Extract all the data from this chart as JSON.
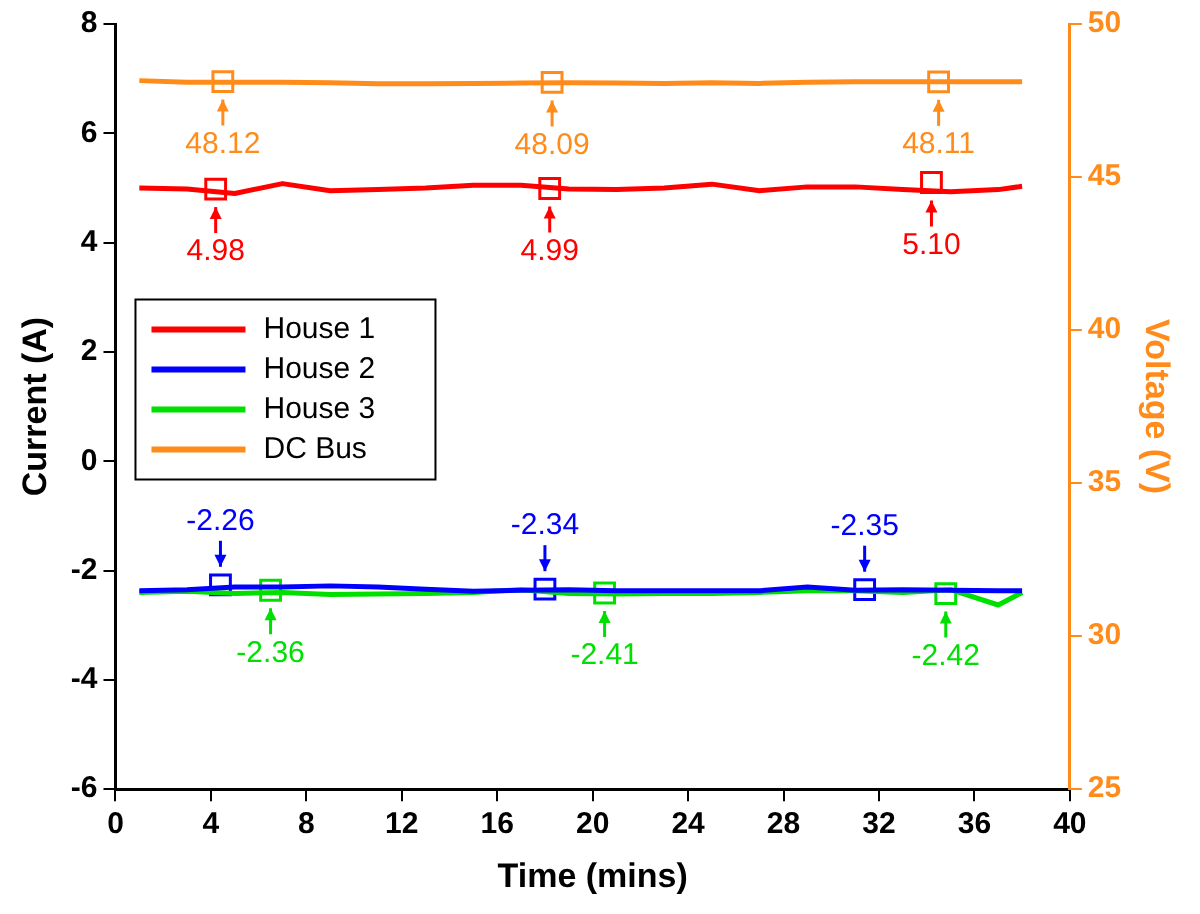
{
  "chart_data": {
    "type": "line",
    "xlabel": "Time (mins)",
    "ylabel": "Current (A)",
    "y2label": "Voltage (V)",
    "xlim": [
      0,
      40
    ],
    "xticks": [
      0,
      4,
      8,
      12,
      16,
      20,
      24,
      28,
      32,
      36,
      40
    ],
    "ylim": [
      -6,
      8
    ],
    "yticks": [
      -6,
      -4,
      -2,
      0,
      2,
      4,
      6,
      8
    ],
    "y2lim": [
      25,
      50
    ],
    "y2ticks": [
      25,
      30,
      35,
      40,
      45,
      50
    ],
    "grid": false,
    "legend": "left",
    "marker": "none",
    "line_style": "solid",
    "series": [
      {
        "name": "House 1",
        "color": "#ff0000",
        "x": [
          1,
          3,
          5,
          7,
          9,
          11,
          13,
          15,
          17,
          19,
          21,
          23,
          25,
          27,
          29,
          31,
          33,
          35,
          37,
          38
        ],
        "values": [
          5.0,
          4.98,
          4.9,
          5.08,
          4.95,
          4.97,
          5.0,
          5.05,
          5.05,
          4.98,
          4.97,
          5.0,
          5.07,
          4.95,
          5.02,
          5.02,
          4.97,
          4.93,
          4.97,
          5.03
        ]
      },
      {
        "name": "House 2",
        "color": "#0000ff",
        "x": [
          1,
          3,
          5,
          7,
          9,
          11,
          13,
          15,
          17,
          19,
          21,
          23,
          25,
          27,
          29,
          31,
          33,
          35,
          37,
          38
        ],
        "values": [
          -2.37,
          -2.35,
          -2.3,
          -2.3,
          -2.28,
          -2.3,
          -2.34,
          -2.38,
          -2.36,
          -2.35,
          -2.37,
          -2.37,
          -2.37,
          -2.37,
          -2.3,
          -2.36,
          -2.35,
          -2.36,
          -2.37,
          -2.37
        ]
      },
      {
        "name": "House 3",
        "color": "#00e000",
        "x": [
          1,
          3,
          5,
          7,
          9,
          11,
          13,
          15,
          17,
          19,
          21,
          23,
          25,
          27,
          29,
          31,
          33,
          35,
          37,
          38
        ],
        "values": [
          -2.4,
          -2.38,
          -2.42,
          -2.4,
          -2.44,
          -2.43,
          -2.42,
          -2.4,
          -2.35,
          -2.42,
          -2.43,
          -2.42,
          -2.42,
          -2.4,
          -2.37,
          -2.37,
          -2.4,
          -2.35,
          -2.63,
          -2.4
        ]
      },
      {
        "name": "DC Bus",
        "color": "#ff8c1a",
        "axis": "y2",
        "x": [
          1,
          3,
          5,
          7,
          9,
          11,
          13,
          15,
          17,
          19,
          21,
          23,
          25,
          27,
          29,
          31,
          33,
          35,
          37,
          38
        ],
        "values": [
          48.15,
          48.1,
          48.1,
          48.1,
          48.08,
          48.05,
          48.05,
          48.06,
          48.07,
          48.08,
          48.07,
          48.06,
          48.08,
          48.06,
          48.1,
          48.11,
          48.11,
          48.11,
          48.11,
          48.11
        ]
      },
      {
        "type": "scatter",
        "marker": "square",
        "color": "#ff0000",
        "x": [
          4.2,
          18.2,
          34.2
        ],
        "values": [
          4.98,
          4.99,
          5.1
        ],
        "value_labels": [
          "4.98",
          "4.99",
          "5.10"
        ]
      },
      {
        "type": "scatter",
        "marker": "square",
        "color": "#ff8c1a",
        "axis": "y2",
        "x": [
          4.5,
          18.3,
          34.5
        ],
        "values": [
          48.12,
          48.09,
          48.11
        ],
        "value_labels": [
          "48.12",
          "48.09",
          "48.11"
        ]
      },
      {
        "type": "scatter",
        "marker": "square",
        "color": "#0000ff",
        "x": [
          4.4,
          18.0,
          31.4
        ],
        "values": [
          -2.26,
          -2.34,
          -2.35
        ],
        "value_labels": [
          "-2.26",
          "-2.34",
          "-2.35"
        ]
      },
      {
        "type": "scatter",
        "marker": "square",
        "color": "#00e000",
        "x": [
          6.5,
          20.5,
          34.8
        ],
        "values": [
          -2.36,
          -2.41,
          -2.42
        ],
        "value_labels": [
          "-2.36",
          "-2.41",
          "-2.42"
        ]
      }
    ]
  }
}
